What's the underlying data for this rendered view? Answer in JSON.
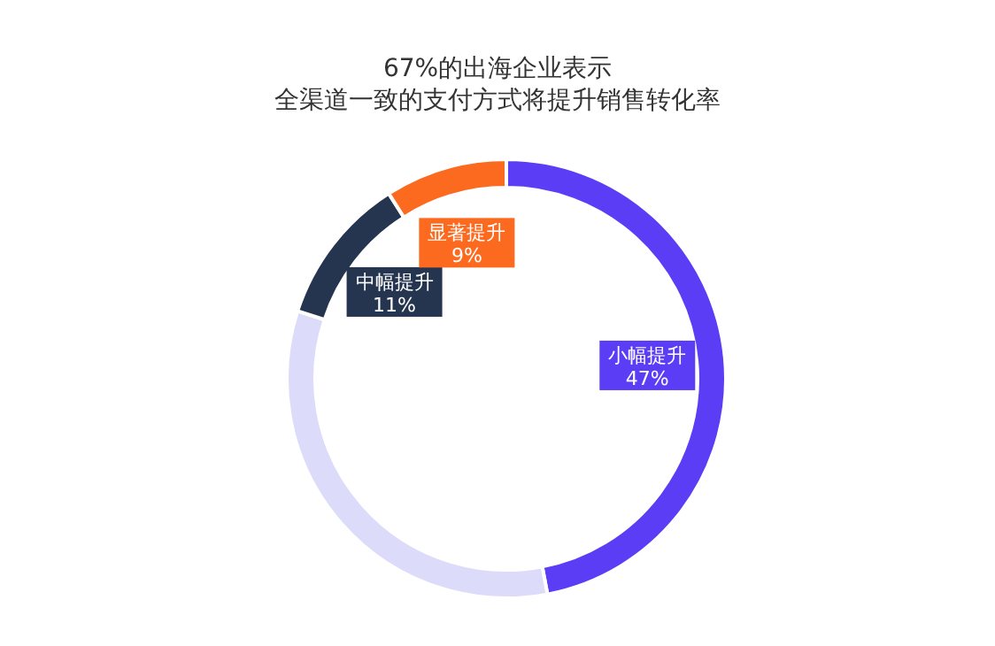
{
  "chart_data": {
    "type": "donut",
    "title": "67%的出海企业表示",
    "subtitle": "全渠道一致的支付方式将提升销售转化率",
    "categories": [
      "小幅提升",
      null,
      "中幅提升",
      "显著提升"
    ],
    "values": [
      47,
      33,
      11,
      9
    ],
    "colors": [
      "#5b3df5",
      "#dcdcfa",
      "#25344f",
      "#fb6a1e"
    ],
    "value_labels": [
      "47%",
      null,
      "11%",
      "9%"
    ]
  }
}
